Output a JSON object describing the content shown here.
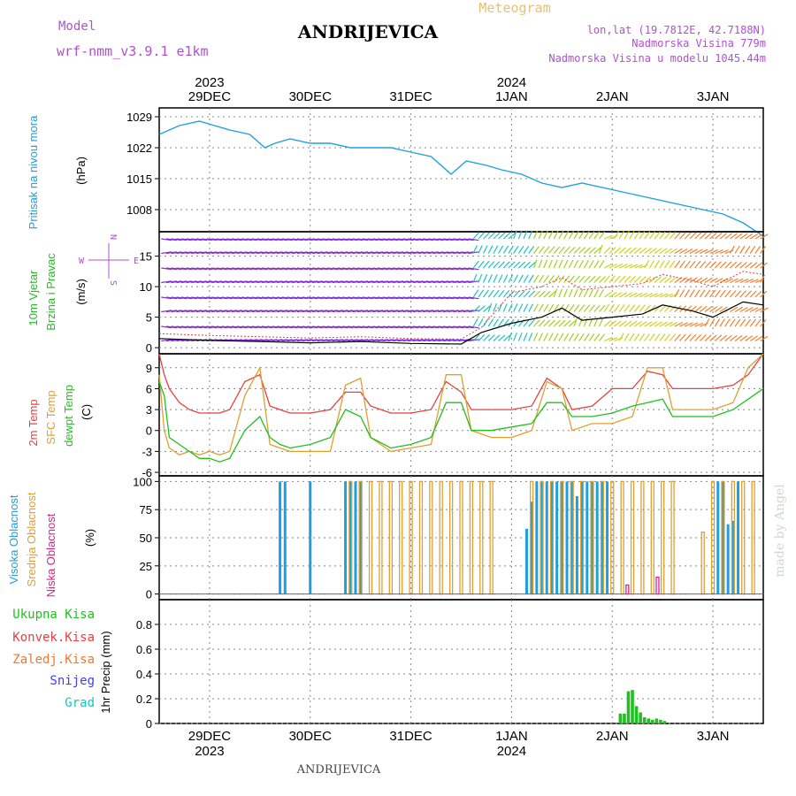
{
  "header": {
    "model_label": "Model",
    "model_name": "wrf-nmm_v3.9.1  e1km",
    "station_title": "ANDRIJEVICA",
    "meteogram_label": "Meteogram",
    "lonlat": "lon,lat (19.7812E, 42.7188N)",
    "elevation": "Nadmorska Visina 779m",
    "model_elevation": "Nadmorska Visina u modelu 1045.44m",
    "footer_station": "ANDRIJEVICA",
    "watermark": "made by Angel"
  },
  "colors": {
    "pressure": "#1ea0e0",
    "t2m": "#e84040",
    "sfc": "#e0a030",
    "dewpt": "#20c020",
    "high_cloud": "#1ea0e0",
    "mid_cloud": "#e0a030",
    "low_cloud": "#e0208a",
    "precip_total": "#20c020",
    "purple_text": "#b050d0",
    "grid": "#888888"
  },
  "time_axis": {
    "top_year_labels": [
      {
        "label": "2023",
        "day": 0
      },
      {
        "label": "2024",
        "day": 3
      }
    ],
    "top_day_labels": [
      "29DEC",
      "30DEC",
      "31DEC",
      "1JAN",
      "2JAN",
      "3JAN"
    ],
    "bottom_day_labels": [
      "29DEC",
      "30DEC",
      "31DEC",
      "1JAN",
      "2JAN",
      "3JAN"
    ],
    "bottom_year_labels": [
      {
        "label": "2023",
        "day": 0
      },
      {
        "label": "2024",
        "day": 3
      }
    ],
    "start_day": -0.5,
    "end_day": 5.5
  },
  "panels": {
    "pressure": {
      "ylabel_main": "Pritisak na nivou mora",
      "ylabel_unit": "(hPa)",
      "ticks": [
        "1008",
        "1015",
        "1022",
        "1029"
      ]
    },
    "wind": {
      "ylabel_main": "10m Vjetar",
      "ylabel_sub": "Brzina i Pravac",
      "ylabel_unit": "(m/s)",
      "ticks": [
        "0",
        "5",
        "10",
        "15"
      ],
      "compass": {
        "n": "N",
        "w": "W",
        "e": "E",
        "s": "S"
      }
    },
    "temp": {
      "ylabel_t2m": "2m Temp",
      "ylabel_sfc": "SFC Temp",
      "ylabel_dew": "dewpt Temp",
      "ylabel_unit": "(C)",
      "ticks": [
        "-6",
        "-3",
        "0",
        "3",
        "6",
        "9"
      ]
    },
    "cloud": {
      "ylabel_high": "Visoka Oblacnost",
      "ylabel_mid": "Srednja Oblacnost",
      "ylabel_low": "Niska Oblacnost",
      "ylabel_unit": "(%)",
      "ticks": [
        "0",
        "25",
        "50",
        "75",
        "100"
      ]
    },
    "precip": {
      "legend": [
        "Ukupna Kisa",
        "Konvek.Kisa",
        "Zaledj.Kisa",
        "Snijeg",
        "Grad"
      ],
      "legend_colors": [
        "#20c020",
        "#e84040",
        "#f07830",
        "#4040e0",
        "#20c0c0"
      ],
      "ylabel": "1hr Precip (mm)",
      "ticks": [
        "0",
        "0.2",
        "0.4",
        "0.6",
        "0.8"
      ]
    }
  },
  "chart_data": [
    {
      "type": "line",
      "name": "pressure",
      "ylabel": "Pritisak na nivou mora (hPa)",
      "ylim": [
        1003,
        1031
      ],
      "x": [
        -0.5,
        -0.3,
        -0.1,
        0.05,
        0.2,
        0.4,
        0.55,
        0.65,
        0.8,
        1.0,
        1.2,
        1.4,
        1.6,
        1.8,
        2.0,
        2.2,
        2.4,
        2.55,
        2.75,
        2.9,
        3.1,
        3.3,
        3.5,
        3.7,
        3.9,
        4.1,
        4.3,
        4.5,
        4.7,
        4.9,
        5.1,
        5.3,
        5.5
      ],
      "y": [
        1025,
        1027,
        1028,
        1027,
        1026,
        1025,
        1022,
        1023,
        1024,
        1023,
        1023,
        1022,
        1022,
        1022,
        1021,
        1020,
        1016,
        1019,
        1018,
        1017,
        1016,
        1014,
        1013,
        1014,
        1013,
        1012,
        1011,
        1010,
        1009,
        1008,
        1007,
        1005,
        1002
      ],
      "grid": true
    },
    {
      "type": "line",
      "name": "wind-speed",
      "ylabel": "10m Vjetar Brzina i Pravac (m/s)",
      "ylim": [
        -1,
        19
      ],
      "x": [
        -0.5,
        0.0,
        0.5,
        1.0,
        1.5,
        2.0,
        2.5,
        2.7,
        3.0,
        3.3,
        3.5,
        3.7,
        4.0,
        4.3,
        4.5,
        4.8,
        5.0,
        5.3,
        5.5
      ],
      "y": [
        1.5,
        1.2,
        1.0,
        0.8,
        1.0,
        0.7,
        0.6,
        2.5,
        4.0,
        5.0,
        6.5,
        4.5,
        5.0,
        5.5,
        7.0,
        6.0,
        5.0,
        7.5,
        7.0
      ],
      "grid": true
    },
    {
      "type": "line",
      "name": "temperature",
      "ylabel": "(C)",
      "ylim": [
        -6.5,
        11
      ],
      "x": [
        -0.5,
        -0.45,
        -0.4,
        -0.3,
        -0.2,
        -0.1,
        0.0,
        0.1,
        0.2,
        0.35,
        0.5,
        0.6,
        0.7,
        0.8,
        1.0,
        1.2,
        1.35,
        1.5,
        1.6,
        1.8,
        2.0,
        2.2,
        2.35,
        2.5,
        2.6,
        2.8,
        3.0,
        3.2,
        3.35,
        3.5,
        3.6,
        3.8,
        4.0,
        4.2,
        4.35,
        4.5,
        4.6,
        4.8,
        5.0,
        5.2,
        5.35,
        5.5
      ],
      "series": [
        {
          "name": "2m Temp",
          "values": [
            11,
            8,
            6,
            4,
            3,
            2.5,
            2.5,
            2.5,
            3,
            7,
            8,
            3.5,
            3,
            2.5,
            2.5,
            3,
            5.5,
            5.5,
            3.5,
            2.5,
            2.5,
            3,
            7,
            5.5,
            3,
            3,
            3,
            3.5,
            7.5,
            6,
            3,
            3.5,
            6,
            6,
            8.5,
            8,
            6,
            6,
            6,
            6.5,
            8,
            11
          ]
        },
        {
          "name": "SFC Temp",
          "values": [
            8,
            0,
            -2.5,
            -3.5,
            -3,
            -3.5,
            -3,
            -3.5,
            -3,
            5,
            9,
            -2,
            -2.5,
            -3,
            -3,
            -3,
            6.5,
            7.5,
            -1,
            -3,
            -2.5,
            -2,
            8,
            8,
            0,
            -1,
            -1,
            0,
            7,
            6,
            0,
            1,
            1,
            2,
            9,
            9,
            3,
            3,
            3,
            4,
            9,
            11
          ]
        },
        {
          "name": "dewpt Temp",
          "values": [
            7,
            5,
            -1,
            -2,
            -3,
            -4,
            -4,
            -4.5,
            -4,
            0,
            2,
            -1,
            -2,
            -2.5,
            -2,
            -1,
            3,
            2,
            -1,
            -2.5,
            -2,
            -1,
            4,
            4,
            0,
            0,
            0.5,
            1,
            4,
            4,
            2,
            2,
            2.5,
            3.5,
            4,
            4.5,
            2,
            2,
            2,
            3,
            4.5,
            6
          ]
        }
      ],
      "grid": true
    },
    {
      "type": "bar",
      "name": "cloud-cover",
      "ylabel": "(%)",
      "ylim": [
        -5,
        105
      ],
      "series": [
        {
          "name": "Visoka Oblacnost",
          "x": [
            0.7,
            0.75,
            1.0,
            1.35,
            1.4,
            1.45,
            1.5,
            3.15,
            3.2,
            3.25,
            3.3,
            3.35,
            3.4,
            3.45,
            3.5,
            3.55,
            3.6,
            3.65,
            3.7,
            3.75,
            3.8,
            3.85,
            3.9,
            3.95,
            5.05,
            5.1,
            5.15,
            5.2,
            5.25
          ],
          "values": [
            100,
            100,
            100,
            100,
            100,
            100,
            100,
            58,
            82,
            100,
            100,
            100,
            100,
            100,
            100,
            100,
            100,
            87,
            100,
            100,
            100,
            100,
            100,
            100,
            100,
            100,
            62,
            65,
            100
          ]
        },
        {
          "name": "Srednja Oblacnost",
          "x": [
            1.4,
            1.5,
            1.6,
            1.7,
            1.8,
            1.9,
            2.0,
            2.1,
            2.2,
            2.3,
            2.4,
            2.5,
            2.6,
            2.7,
            2.8,
            3.2,
            3.3,
            3.4,
            3.5,
            3.6,
            3.7,
            3.8,
            3.9,
            4.0,
            4.1,
            4.2,
            4.3,
            4.4,
            4.5,
            4.6,
            4.9,
            5.0,
            5.1,
            5.2,
            5.3,
            5.4
          ],
          "values": [
            100,
            100,
            100,
            100,
            100,
            100,
            100,
            100,
            100,
            100,
            100,
            100,
            100,
            100,
            100,
            100,
            100,
            100,
            100,
            100,
            100,
            100,
            100,
            100,
            100,
            100,
            100,
            100,
            100,
            100,
            55,
            100,
            100,
            100,
            100,
            100
          ]
        },
        {
          "name": "Niska Oblacnost",
          "x": [
            4.15,
            4.45
          ],
          "values": [
            8,
            15
          ]
        }
      ],
      "grid": true
    },
    {
      "type": "bar",
      "name": "precipitation",
      "ylabel": "1hr Precip (mm)",
      "ylim": [
        0,
        1.0
      ],
      "series": [
        {
          "name": "Ukupna Kisa",
          "x": [
            4.08,
            4.12,
            4.16,
            4.2,
            4.24,
            4.28,
            4.32,
            4.36,
            4.4,
            4.44,
            4.48,
            4.52
          ],
          "values": [
            0.08,
            0.08,
            0.26,
            0.27,
            0.14,
            0.09,
            0.05,
            0.04,
            0.03,
            0.04,
            0.03,
            0.02
          ]
        }
      ],
      "grid": true
    }
  ]
}
